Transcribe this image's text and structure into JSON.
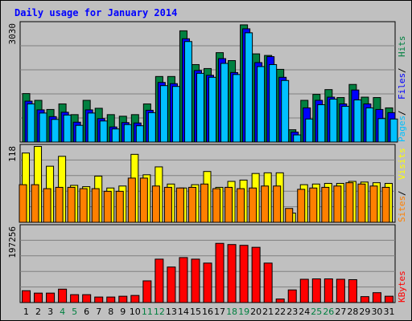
{
  "title": "Daily usage for January 2014",
  "colors": {
    "frame_bg": "#c0c0c0",
    "plot_bg": "#c0c0c0",
    "gridline": "#808080",
    "title": "#0000ff",
    "hits": "#008040",
    "files": "#0000ff",
    "pages": "#00c0ff",
    "visits": "#ffff00",
    "sites": "#ff8000",
    "kbytes": "#ff0000",
    "weekend_day": "#008040",
    "weekday": "#000000"
  },
  "chart_data": {
    "type": "bar",
    "title": "Daily usage for January 2014",
    "days": [
      "1",
      "2",
      "3",
      "4",
      "5",
      "6",
      "7",
      "8",
      "9",
      "10",
      "11",
      "12",
      "13",
      "14",
      "15",
      "16",
      "17",
      "18",
      "19",
      "20",
      "21",
      "22",
      "23",
      "24",
      "25",
      "26",
      "27",
      "28",
      "29",
      "30",
      "31"
    ],
    "weekend_days": [
      "4",
      "5",
      "11",
      "12",
      "18",
      "19",
      "25",
      "26"
    ],
    "panels": [
      {
        "id": "hits_files_pages",
        "max_label": "3030",
        "max": 3030,
        "legend": [
          "Pages",
          "Files",
          "Hits"
        ],
        "series": [
          {
            "name": "Hits",
            "values": [
              1220,
              1050,
              820,
              960,
              690,
              1050,
              850,
              690,
              650,
              690,
              960,
              1650,
              1650,
              2800,
              1950,
              1850,
              2250,
              2050,
              2950,
              2220,
              2180,
              1830,
              310,
              1050,
              1200,
              1320,
              1120,
              1450,
              1130,
              1120,
              860
            ]
          },
          {
            "name": "Files",
            "values": [
              1030,
              810,
              640,
              750,
              500,
              810,
              590,
              380,
              490,
              480,
              800,
              1500,
              1470,
              2600,
              1800,
              1680,
              2100,
              1750,
              2850,
              2000,
              2150,
              1630,
              250,
              860,
              1050,
              1130,
              960,
              1310,
              960,
              820,
              740
            ]
          },
          {
            "name": "Pages",
            "values": [
              960,
              730,
              570,
              680,
              420,
              730,
              530,
              330,
              440,
              410,
              740,
              1420,
              1400,
              2530,
              1730,
              1630,
              1980,
              1700,
              2750,
              1900,
              1950,
              1550,
              180,
              580,
              940,
              1080,
              900,
              1060,
              860,
              590,
              580
            ]
          }
        ]
      },
      {
        "id": "visits_sites",
        "max_label": "118",
        "max": 118,
        "legend": [
          "Sites",
          "Visits"
        ],
        "series": [
          {
            "name": "Visits",
            "values": [
              105,
              115,
              85,
              100,
              56,
              54,
              70,
              52,
              55,
              103,
              72,
              84,
              58,
              52,
              57,
              77,
              53,
              62,
              64,
              74,
              75,
              75,
              14,
              57,
              58,
              59,
              59,
              62,
              61,
              60,
              59
            ]
          },
          {
            "name": "Sites",
            "values": [
              57,
              57,
              51,
              53,
              53,
              51,
              51,
              47,
              47,
              67,
              67,
              55,
              53,
              52,
              53,
              58,
              51,
              53,
              51,
              52,
              55,
              55,
              21,
              50,
              52,
              53,
              55,
              60,
              58,
              55,
              53
            ]
          }
        ]
      },
      {
        "id": "kbytes",
        "max_label": "197256",
        "max": 197256,
        "legend": [
          "KBytes"
        ],
        "series": [
          {
            "name": "KBytes",
            "values": [
              30000,
              24000,
              24000,
              34000,
              20000,
              20000,
              14000,
              14000,
              16000,
              18000,
              55000,
              110000,
              90000,
              114000,
              110000,
              100000,
              150000,
              147000,
              145000,
              140000,
              100000,
              9000,
              32000,
              59000,
              60000,
              60000,
              59000,
              58000,
              15000,
              25000,
              16000
            ]
          }
        ]
      }
    ]
  }
}
